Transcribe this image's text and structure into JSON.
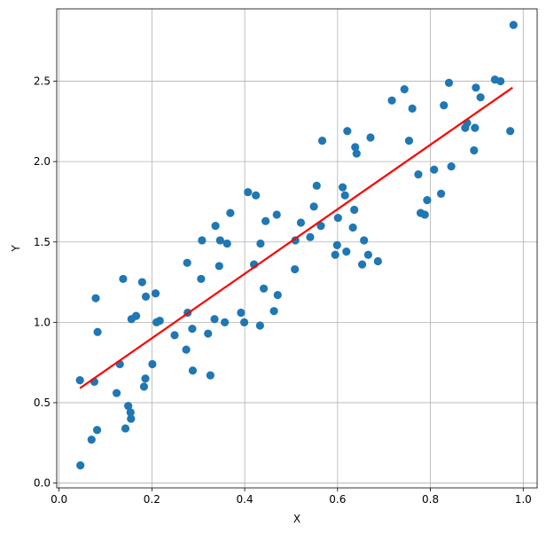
{
  "chart_data": {
    "type": "scatter",
    "xlabel": "X",
    "ylabel": "Y",
    "xlim": [
      -0.005,
      1.03
    ],
    "ylim": [
      -0.03,
      2.95
    ],
    "grid": true,
    "xticks": [
      0.0,
      0.2,
      0.4,
      0.6,
      0.8,
      1.0
    ],
    "xtick_labels": [
      "0.0",
      "0.2",
      "0.4",
      "0.6",
      "0.8",
      "1.0"
    ],
    "yticks": [
      0.0,
      0.5,
      1.0,
      1.5,
      2.0,
      2.5
    ],
    "ytick_labels": [
      "0.0",
      "0.5",
      "1.0",
      "1.5",
      "2.0",
      "2.5"
    ],
    "colors": {
      "points": "#1f77b4",
      "fit_line": "#ff0000",
      "grid": "#b0b0b0"
    },
    "points": [
      [
        0.046,
        0.11
      ],
      [
        0.045,
        0.64
      ],
      [
        0.07,
        0.27
      ],
      [
        0.076,
        0.63
      ],
      [
        0.079,
        1.15
      ],
      [
        0.082,
        0.33
      ],
      [
        0.083,
        0.94
      ],
      [
        0.124,
        0.56
      ],
      [
        0.131,
        0.74
      ],
      [
        0.138,
        1.27
      ],
      [
        0.143,
        0.34
      ],
      [
        0.149,
        0.48
      ],
      [
        0.154,
        0.44
      ],
      [
        0.155,
        0.4
      ],
      [
        0.156,
        1.02
      ],
      [
        0.166,
        1.04
      ],
      [
        0.179,
        1.25
      ],
      [
        0.183,
        0.6
      ],
      [
        0.186,
        0.65
      ],
      [
        0.187,
        1.16
      ],
      [
        0.201,
        0.74
      ],
      [
        0.208,
        1.18
      ],
      [
        0.21,
        1.0
      ],
      [
        0.217,
        1.01
      ],
      [
        0.249,
        0.92
      ],
      [
        0.274,
        0.83
      ],
      [
        0.276,
        1.37
      ],
      [
        0.277,
        1.06
      ],
      [
        0.287,
        0.96
      ],
      [
        0.288,
        0.7
      ],
      [
        0.306,
        1.27
      ],
      [
        0.308,
        1.51
      ],
      [
        0.321,
        0.93
      ],
      [
        0.326,
        0.67
      ],
      [
        0.335,
        1.02
      ],
      [
        0.337,
        1.6
      ],
      [
        0.345,
        1.35
      ],
      [
        0.347,
        1.51
      ],
      [
        0.357,
        1.0
      ],
      [
        0.362,
        1.49
      ],
      [
        0.369,
        1.68
      ],
      [
        0.392,
        1.06
      ],
      [
        0.399,
        1.0
      ],
      [
        0.407,
        1.81
      ],
      [
        0.42,
        1.36
      ],
      [
        0.424,
        1.79
      ],
      [
        0.433,
        0.98
      ],
      [
        0.434,
        1.49
      ],
      [
        0.441,
        1.21
      ],
      [
        0.445,
        1.63
      ],
      [
        0.463,
        1.07
      ],
      [
        0.469,
        1.67
      ],
      [
        0.471,
        1.17
      ],
      [
        0.508,
        1.33
      ],
      [
        0.509,
        1.51
      ],
      [
        0.521,
        1.62
      ],
      [
        0.541,
        1.53
      ],
      [
        0.549,
        1.72
      ],
      [
        0.555,
        1.85
      ],
      [
        0.564,
        1.6
      ],
      [
        0.567,
        2.13
      ],
      [
        0.595,
        1.42
      ],
      [
        0.599,
        1.48
      ],
      [
        0.601,
        1.65
      ],
      [
        0.611,
        1.84
      ],
      [
        0.616,
        1.79
      ],
      [
        0.619,
        1.44
      ],
      [
        0.621,
        2.19
      ],
      [
        0.633,
        1.59
      ],
      [
        0.636,
        1.7
      ],
      [
        0.638,
        2.09
      ],
      [
        0.641,
        2.05
      ],
      [
        0.653,
        1.36
      ],
      [
        0.657,
        1.51
      ],
      [
        0.666,
        1.42
      ],
      [
        0.671,
        2.15
      ],
      [
        0.687,
        1.38
      ],
      [
        0.717,
        2.38
      ],
      [
        0.744,
        2.45
      ],
      [
        0.754,
        2.13
      ],
      [
        0.761,
        2.33
      ],
      [
        0.774,
        1.92
      ],
      [
        0.779,
        1.68
      ],
      [
        0.788,
        1.67
      ],
      [
        0.793,
        1.76
      ],
      [
        0.808,
        1.95
      ],
      [
        0.823,
        1.8
      ],
      [
        0.829,
        2.35
      ],
      [
        0.84,
        2.49
      ],
      [
        0.845,
        1.97
      ],
      [
        0.875,
        2.21
      ],
      [
        0.879,
        2.24
      ],
      [
        0.894,
        2.07
      ],
      [
        0.896,
        2.21
      ],
      [
        0.898,
        2.46
      ],
      [
        0.908,
        2.4
      ],
      [
        0.939,
        2.51
      ],
      [
        0.951,
        2.5
      ],
      [
        0.972,
        2.19
      ],
      [
        0.979,
        2.85
      ]
    ],
    "fit_line": {
      "x": [
        0.045,
        0.977
      ],
      "y": [
        0.59,
        2.46
      ]
    }
  }
}
